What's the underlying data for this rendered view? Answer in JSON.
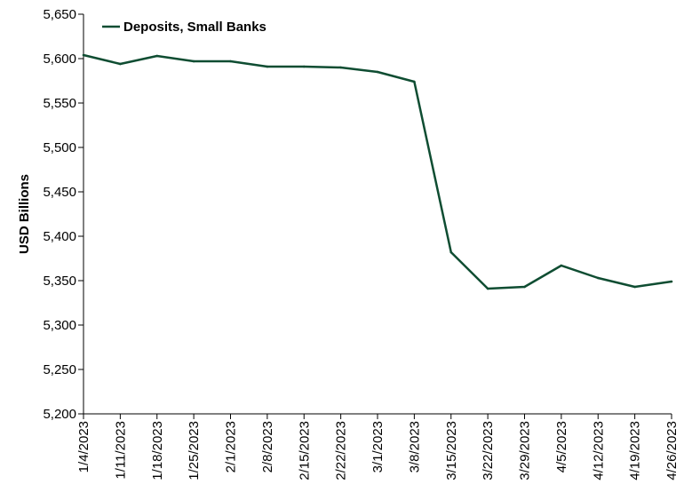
{
  "chart_data": {
    "type": "line",
    "title": "",
    "xlabel": "",
    "ylabel": "USD Billions",
    "ylim": [
      5200,
      5650
    ],
    "yticks": [
      5200,
      5250,
      5300,
      5350,
      5400,
      5450,
      5500,
      5550,
      5600,
      5650
    ],
    "ytick_labels": [
      "5,200",
      "5,250",
      "5,300",
      "5,350",
      "5,400",
      "5,450",
      "5,500",
      "5,550",
      "5,600",
      "5,650"
    ],
    "x": [
      "1/4/2023",
      "1/11/2023",
      "1/18/2023",
      "1/25/2023",
      "2/1/2023",
      "2/8/2023",
      "2/15/2023",
      "2/22/2023",
      "3/1/2023",
      "3/8/2023",
      "3/15/2023",
      "3/22/2023",
      "3/29/2023",
      "4/5/2023",
      "4/12/2023",
      "4/19/2023",
      "4/26/2023"
    ],
    "series": [
      {
        "name": "Deposits, Small Banks",
        "color": "#0f4d32",
        "values": [
          5604,
          5594,
          5603,
          5597,
          5597,
          5591,
          5591,
          5590,
          5585,
          5574,
          5382,
          5341,
          5343,
          5367,
          5353,
          5343,
          5349
        ]
      }
    ],
    "legend": {
      "position": "top-left",
      "label": "Deposits, Small Banks"
    },
    "grid": false
  }
}
